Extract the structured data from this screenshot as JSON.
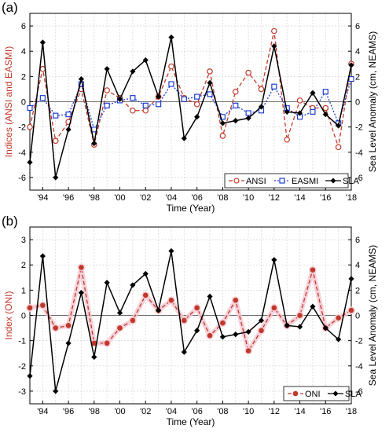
{
  "chart_data": [
    {
      "panel_label": "(a)",
      "type": "line",
      "x": [
        1993,
        1994,
        1995,
        1996,
        1997,
        1998,
        1999,
        2000,
        2001,
        2002,
        2003,
        2004,
        2005,
        2006,
        2007,
        2008,
        2009,
        2010,
        2011,
        2012,
        2013,
        2014,
        2015,
        2016,
        2017,
        2018
      ],
      "x_tick_labels": [
        "'94",
        "'96",
        "'98",
        "'00",
        "'02",
        "'04",
        "'06",
        "'08",
        "'10",
        "'12",
        "'14",
        "'16",
        "'18"
      ],
      "x_tick_values": [
        1994,
        1996,
        1998,
        2000,
        2002,
        2004,
        2006,
        2008,
        2010,
        2012,
        2014,
        2016,
        2018
      ],
      "xlim": [
        1993,
        2018
      ],
      "xlabel": "Time (Year)",
      "ylabel_left": "Indices (ANSI and EASMI)",
      "ylabel_right": "Sea Level Anomaly (cm, NEAMS)",
      "ylim_left": [
        -7,
        7
      ],
      "ylim_right": [
        -7,
        7
      ],
      "yticks_left": [
        -6,
        -4,
        -2,
        0,
        2,
        4,
        6
      ],
      "yticks_right": [
        -6,
        -4,
        -2,
        0,
        2,
        4,
        6
      ],
      "legend_position": "bottom-right",
      "series": [
        {
          "name": "ANSI",
          "axis": "left",
          "color": "#c0392b",
          "marker": "circle-open",
          "line": "dashed",
          "values": [
            -2.0,
            2.6,
            -3.1,
            -1.6,
            1.0,
            -3.4,
            0.9,
            0.3,
            -0.7,
            -0.7,
            0.4,
            2.8,
            0.3,
            -0.2,
            2.4,
            -2.7,
            0.8,
            2.3,
            1.0,
            5.6,
            -3.0,
            0.1,
            -0.5,
            -0.5,
            -3.6,
            3.0
          ]
        },
        {
          "name": "EASMI",
          "axis": "left",
          "color": "#1f3fd1",
          "marker": "square-open",
          "line": "dotted",
          "values": [
            -0.5,
            0.3,
            -1.1,
            -1.0,
            1.4,
            -2.2,
            -0.3,
            0.1,
            0.3,
            -0.3,
            -0.2,
            1.4,
            0.2,
            0.4,
            0.6,
            -1.2,
            -0.3,
            -0.9,
            -0.7,
            1.2,
            -0.5,
            -1.2,
            -0.8,
            0.8,
            -1.7,
            1.8
          ]
        },
        {
          "name": "SLA",
          "axis": "right",
          "color": "#000000",
          "marker": "diamond-filled",
          "line": "solid",
          "values": [
            -4.8,
            4.7,
            -6.0,
            -2.2,
            1.8,
            -3.3,
            2.6,
            0.2,
            2.4,
            3.3,
            0.4,
            5.1,
            -2.9,
            -1.2,
            1.5,
            -1.7,
            -1.5,
            -1.3,
            -0.4,
            4.4,
            -0.8,
            -0.9,
            0.7,
            -1.0,
            -1.9,
            2.9
          ]
        }
      ]
    },
    {
      "panel_label": "(b)",
      "type": "line",
      "x": [
        1993,
        1994,
        1995,
        1996,
        1997,
        1998,
        1999,
        2000,
        2001,
        2002,
        2003,
        2004,
        2005,
        2006,
        2007,
        2008,
        2009,
        2010,
        2011,
        2012,
        2013,
        2014,
        2015,
        2016,
        2017,
        2018
      ],
      "x_tick_labels": [
        "'94",
        "'96",
        "'98",
        "'00",
        "'02",
        "'04",
        "'06",
        "'08",
        "'10",
        "'12",
        "'14",
        "'16",
        "'18"
      ],
      "x_tick_values": [
        1994,
        1996,
        1998,
        2000,
        2002,
        2004,
        2006,
        2008,
        2010,
        2012,
        2014,
        2016,
        2018
      ],
      "xlim": [
        1993,
        2018
      ],
      "xlabel": "Time (Year)",
      "ylabel_left": "Index (ONI)",
      "ylabel_right": "Sea Level Anomaly (cm, NEAMS)",
      "ylim_left": [
        -3.5,
        3.5
      ],
      "ylim_right": [
        -7,
        7
      ],
      "yticks_left": [
        -3,
        -2,
        -1,
        0,
        1,
        2,
        3
      ],
      "yticks_right": [
        -6,
        -4,
        -2,
        0,
        2,
        4,
        6
      ],
      "legend_position": "bottom-right",
      "series": [
        {
          "name": "ONI",
          "axis": "left",
          "color": "#c0392b",
          "marker": "circle-filled",
          "line": "dashed",
          "values": [
            0.3,
            0.4,
            -0.5,
            -0.4,
            1.9,
            -1.1,
            -1.1,
            -0.5,
            -0.2,
            0.8,
            0.2,
            0.6,
            -0.2,
            0.3,
            -0.8,
            -0.3,
            0.6,
            -1.4,
            -0.6,
            0.3,
            -0.4,
            0.0,
            1.8,
            -0.5,
            -0.1,
            0.2
          ]
        },
        {
          "name": "SLA",
          "axis": "right",
          "color": "#000000",
          "marker": "diamond-filled",
          "line": "solid",
          "values": [
            -4.8,
            4.7,
            -6.0,
            -2.2,
            1.8,
            -3.3,
            2.6,
            0.2,
            2.4,
            3.3,
            0.4,
            5.1,
            -2.9,
            -1.2,
            1.5,
            -1.7,
            -1.5,
            -1.3,
            -0.4,
            4.4,
            -0.8,
            -0.9,
            0.7,
            -1.0,
            -1.9,
            2.9
          ]
        }
      ]
    }
  ]
}
